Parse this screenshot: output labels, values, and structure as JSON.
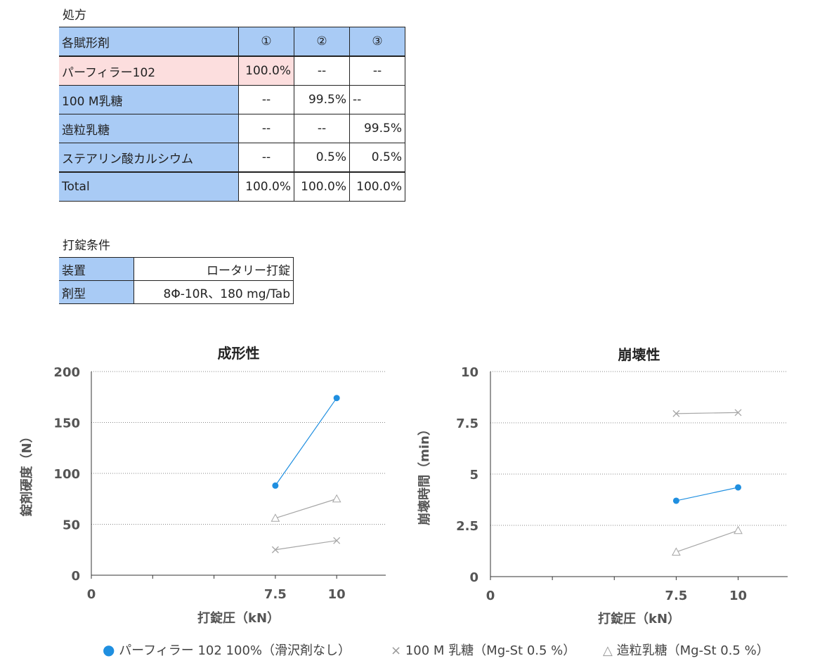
{
  "formulation": {
    "title": "処方",
    "headers": [
      "各賦形剤",
      "①",
      "②",
      "③"
    ],
    "rows": [
      {
        "name": "パーフィラー102",
        "v1": "100.0%",
        "v2": "--",
        "v3": "--"
      },
      {
        "name": "100 M乳糖",
        "v1": "--",
        "v2": "99.5%",
        "v3": "--"
      },
      {
        "name": "造粒乳糖",
        "v1": "--",
        "v2": "--",
        "v3": "99.5%"
      },
      {
        "name": "ステアリン酸カルシウム",
        "v1": "--",
        "v2": "0.5%",
        "v3": "0.5%"
      }
    ],
    "total": {
      "name": "Total",
      "v1": "100.0%",
      "v2": "100.0%",
      "v3": "100.0%"
    }
  },
  "conditions": {
    "title": "打錠条件",
    "rows": [
      {
        "label": "装置",
        "value": "ロータリー打錠"
      },
      {
        "label": "剤型",
        "value": "8Φ-10R、180 mg/Tab"
      }
    ]
  },
  "legend": {
    "items": [
      {
        "symbol": "●",
        "label": "パーフィラー 102 100%（滑沢剤なし）"
      },
      {
        "symbol": "×",
        "label": "100 M 乳糖（Mg-St 0.5 %）"
      },
      {
        "symbol": "△",
        "label": "造粒乳糖（Mg-St 0.5 %）"
      }
    ]
  },
  "colors": {
    "series1": "#1f8fe0",
    "series_gray": "#a6a6a6",
    "header_blue": "#a9cbf5",
    "highlight_pink": "#fcdede"
  },
  "chart_data": [
    {
      "type": "scatter",
      "title": "成形性",
      "xlabel": "打錠圧（kN）",
      "ylabel": "錠剤硬度（N）",
      "xlim": [
        0,
        12
      ],
      "ylim": [
        0,
        200
      ],
      "xticks": [
        0,
        7.5,
        10
      ],
      "xtick_labels": [
        "0",
        "7.5",
        "10"
      ],
      "yticks": [
        0,
        50,
        100,
        150,
        200
      ],
      "ytick_labels": [
        "0",
        "50",
        "100",
        "150",
        "200"
      ],
      "grid": "horizontal dotted",
      "series": [
        {
          "marker": "circle",
          "color": "#1f8fe0",
          "x": [
            7.5,
            10
          ],
          "y": [
            88,
            174
          ]
        },
        {
          "marker": "triangle",
          "color": "#a6a6a6",
          "x": [
            7.5,
            10
          ],
          "y": [
            56,
            75
          ]
        },
        {
          "marker": "cross",
          "color": "#a6a6a6",
          "x": [
            7.5,
            10
          ],
          "y": [
            25,
            34
          ]
        }
      ]
    },
    {
      "type": "scatter",
      "title": "崩壊性",
      "xlabel": "打錠圧（kN）",
      "ylabel": "崩壊時間（min）",
      "xlim": [
        0,
        12
      ],
      "ylim": [
        0,
        10
      ],
      "xticks": [
        0,
        7.5,
        10
      ],
      "xtick_labels": [
        "0",
        "7.5",
        "10"
      ],
      "yticks": [
        0,
        2.5,
        5,
        7.5,
        10
      ],
      "ytick_labels": [
        "0",
        "2.5",
        "5",
        "7.5",
        "10"
      ],
      "grid": "horizontal dotted",
      "series": [
        {
          "marker": "cross",
          "color": "#a6a6a6",
          "x": [
            7.5,
            10
          ],
          "y": [
            7.95,
            8.0
          ]
        },
        {
          "marker": "circle",
          "color": "#1f8fe0",
          "x": [
            7.5,
            10
          ],
          "y": [
            3.7,
            4.35
          ]
        },
        {
          "marker": "triangle",
          "color": "#a6a6a6",
          "x": [
            7.5,
            10
          ],
          "y": [
            1.2,
            2.25
          ]
        }
      ]
    }
  ]
}
